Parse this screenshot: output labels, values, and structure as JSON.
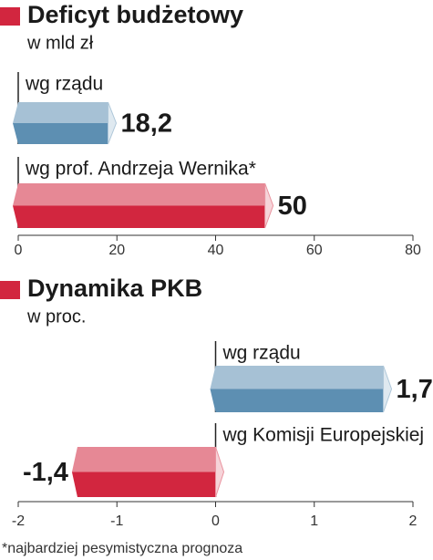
{
  "chart_data": [
    {
      "type": "bar",
      "orientation": "horizontal",
      "title": "Deficyt budżetowy",
      "subtitle": "w mld zł",
      "categories": [
        "wg rządu",
        "wg prof. Andrzeja Wernika*"
      ],
      "values": [
        18.2,
        50
      ],
      "value_labels": [
        "18,2",
        "50"
      ],
      "colors": [
        "#5d8fb2",
        "#d2263f"
      ],
      "xlim": [
        0,
        80
      ],
      "xticks": [
        0,
        20,
        40,
        60,
        80
      ]
    },
    {
      "type": "bar",
      "orientation": "horizontal",
      "title": "Dynamika PKB",
      "subtitle": "w proc.",
      "categories": [
        "wg rządu",
        "wg Komisji Europejskiej"
      ],
      "values": [
        1.7,
        -1.4
      ],
      "value_labels": [
        "1,7",
        "-1,4"
      ],
      "colors": [
        "#5d8fb2",
        "#d2263f"
      ],
      "xlim": [
        -2,
        2
      ],
      "xticks": [
        -2,
        -1,
        0,
        1,
        2
      ]
    }
  ],
  "footnote": "*najbardziej pesymistyczna prognoza"
}
